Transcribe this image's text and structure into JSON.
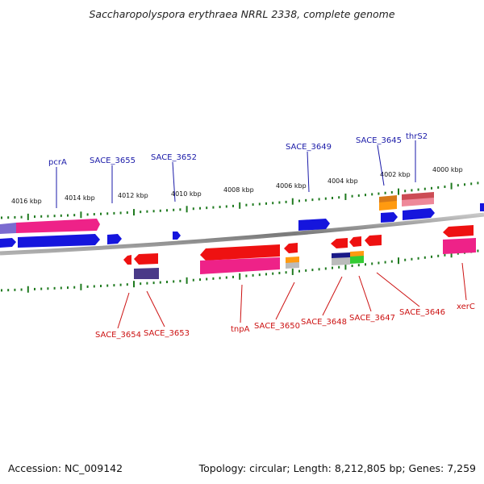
{
  "title": "Saccharopolyspora erythraea NRRL 2338, complete genome",
  "footer": {
    "accession": "Accession: NC_009142",
    "summary": "Topology: circular; Length: 8,212,805 bp; Genes: 7,259"
  },
  "colors": {
    "backbone": "#8a8a8a",
    "tick": "#1f7a1f",
    "forward_label": "#1a1aa8",
    "reverse_label": "#cc1111"
  },
  "scale_labels": [
    "4016 kbp",
    "4014 kbp",
    "4012 kbp",
    "4010 kbp",
    "4008 kbp",
    "4006 kbp",
    "4004 kbp",
    "4002 kbp",
    "4000 kbp"
  ],
  "forward_labels": [
    "pcrA",
    "SACE_3655",
    "SACE_3652",
    "SACE_3649",
    "SACE_3645",
    "thrS2"
  ],
  "reverse_labels": [
    "SACE_3654",
    "SACE_3653",
    "tnpA",
    "SACE_3650",
    "SACE_3648",
    "SACE_3647",
    "SACE_3646",
    "xerC"
  ]
}
